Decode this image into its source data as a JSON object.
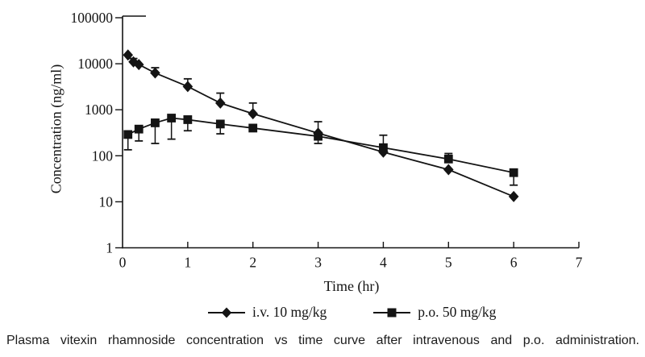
{
  "colors": {
    "ink": "#141414"
  },
  "chart_data": {
    "type": "line",
    "title": "",
    "xlabel": "Time (hr)",
    "ylabel": "Concentration (ng/ml)",
    "y_scale": "log",
    "xlim": [
      0,
      7
    ],
    "ylim": [
      1,
      100000
    ],
    "x_ticks": [
      0,
      1,
      2,
      3,
      4,
      5,
      6,
      7
    ],
    "y_ticks": [
      1,
      10,
      100,
      1000,
      10000,
      100000
    ],
    "grid": false,
    "legend_position": "bottom",
    "series": [
      {
        "name": "i.v. 10 mg/kg",
        "marker": "diamond",
        "color": "#141414",
        "x": [
          0.083,
          0.167,
          0.25,
          0.5,
          1,
          1.5,
          2,
          3,
          4,
          5,
          6
        ],
        "y": [
          15500,
          11000,
          9600,
          6300,
          3200,
          1400,
          820,
          310,
          120,
          50,
          13
        ],
        "err_up": [
          null,
          13000,
          null,
          8200,
          4700,
          2300,
          1400,
          550,
          null,
          null,
          null
        ],
        "err_down": [
          null,
          null,
          null,
          null,
          null,
          null,
          null,
          185,
          null,
          null,
          null
        ]
      },
      {
        "name": "p.o. 50 mg/kg",
        "marker": "square",
        "color": "#141414",
        "x": [
          0.083,
          0.25,
          0.5,
          0.75,
          1,
          1.5,
          2,
          3,
          4,
          5,
          6
        ],
        "y": [
          290,
          380,
          520,
          660,
          610,
          490,
          400,
          265,
          150,
          85,
          43
        ],
        "err_up": [
          null,
          null,
          null,
          null,
          null,
          null,
          null,
          null,
          280,
          112,
          null
        ],
        "err_down": [
          135,
          210,
          185,
          230,
          350,
          300,
          null,
          null,
          null,
          null,
          23
        ]
      }
    ]
  },
  "caption": "Plasma vitexin rhamnoside concentration vs time curve after intravenous and p.o. administration."
}
